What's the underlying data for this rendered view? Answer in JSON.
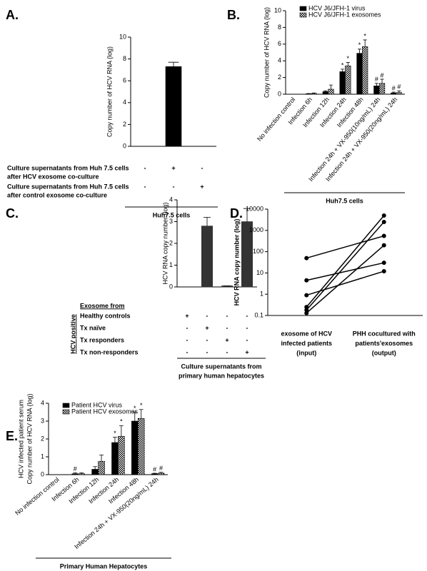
{
  "chart_data": [
    {
      "panel": "A.",
      "type": "bar",
      "y_label": "Copy number of HCV RNA (log)",
      "ylim": [
        0,
        10
      ],
      "yticks": [
        0,
        2,
        4,
        6,
        8,
        10
      ],
      "series": [
        {
          "color": "#000000",
          "values": [
            0,
            7.3,
            0
          ],
          "errors": [
            0,
            0.4,
            0
          ]
        }
      ],
      "conditions": [
        {
          "label": [
            "Culture supernatants  from Huh 7.5 cells",
            "after  HCV exosome co-culture"
          ],
          "signs": [
            "-",
            "+",
            "-"
          ]
        },
        {
          "label": [
            "Culture supernatants  from Huh 7.5 cells",
            "after control exosome co-culture"
          ],
          "signs": [
            "-",
            "-",
            "+"
          ]
        }
      ],
      "footer": [
        "Huh7.5 cells"
      ]
    },
    {
      "panel": "B.",
      "type": "bar",
      "y_label": "Copy number of HCV RNA (log)",
      "ylim": [
        0,
        10
      ],
      "yticks": [
        0,
        2,
        4,
        6,
        8,
        10
      ],
      "categories": [
        "No infection control",
        "Infection 6h",
        "Infection 12h",
        "Infection 24h",
        "Infection 48h",
        "Infection 24h + VX-950(10ng/mL) 24h",
        "Infection 24h + VX-950(20ng/mL) 24h"
      ],
      "series": [
        {
          "name": "HCV J6/JFH-1 virus",
          "color": "#000000",
          "values": [
            0,
            0.05,
            0.3,
            2.7,
            4.9,
            1.0,
            0.15
          ],
          "errors": [
            0,
            0.03,
            0.1,
            0.3,
            0.5,
            0.3,
            0.1
          ],
          "annotations": [
            null,
            null,
            null,
            "*",
            "*",
            "#",
            "#"
          ]
        },
        {
          "name": "HCV J6/JFH-1 exosomes",
          "color": "#000000",
          "pattern": "checker",
          "values": [
            0,
            0.1,
            0.6,
            3.4,
            5.7,
            1.3,
            0.2
          ],
          "errors": [
            0,
            0.05,
            0.5,
            0.4,
            0.8,
            0.5,
            0.2
          ],
          "annotations": [
            null,
            null,
            null,
            "*",
            "*",
            "#",
            "#"
          ]
        }
      ],
      "footer": [
        "Huh7.5 cells"
      ]
    },
    {
      "panel": "C.",
      "type": "bar",
      "y_label": "HCV RNA copy number (log)",
      "ylim": [
        0,
        4
      ],
      "yticks": [
        0,
        1,
        2,
        3,
        4
      ],
      "series": [
        {
          "color": "#333333",
          "values": [
            0,
            2.8,
            0.05,
            3.0
          ],
          "errors": [
            0,
            0.4,
            0,
            0.6
          ]
        }
      ],
      "conditions_title": "Exosome from",
      "group_label": "HCV positive",
      "conditions": [
        {
          "label": [
            "Healthy controls"
          ],
          "signs": [
            "+",
            "-",
            "-",
            "-"
          ]
        },
        {
          "label": [
            "Tx naïve"
          ],
          "signs": [
            "-",
            "+",
            "-",
            "-"
          ]
        },
        {
          "label": [
            "Tx responders"
          ],
          "signs": [
            "-",
            "-",
            "+",
            "-"
          ]
        },
        {
          "label": [
            "Tx non-responders"
          ],
          "signs": [
            "-",
            "-",
            "-",
            "+"
          ]
        }
      ],
      "footer": [
        "Culture supernatants from",
        "primary human hepatocytes"
      ]
    },
    {
      "panel": "D.",
      "type": "line",
      "y_label": "HCV RNA copy number (log)",
      "log_y": true,
      "ylim": [
        0.1,
        10000
      ],
      "yticks": [
        0.1,
        1,
        10,
        100,
        1000,
        10000
      ],
      "categories": [
        [
          "exosome of HCV",
          "infected patients",
          "(input)"
        ],
        [
          "PHH cocultured with",
          "patients'exosomes",
          "(output)"
        ]
      ],
      "series": [
        {
          "color": "#000000",
          "values": [
            50,
            550
          ]
        },
        {
          "color": "#000000",
          "values": [
            4.5,
            30
          ]
        },
        {
          "color": "#000000",
          "values": [
            0.9,
            12
          ]
        },
        {
          "color": "#000000",
          "values": [
            0.25,
            5000
          ]
        },
        {
          "color": "#000000",
          "values": [
            0.18,
            2500
          ]
        },
        {
          "color": "#000000",
          "values": [
            0.13,
            200
          ]
        }
      ]
    },
    {
      "panel": "E.",
      "type": "bar",
      "y_label": [
        "HCV infected patient serum",
        "Copy number of HCV RNA (log)"
      ],
      "ylim": [
        0,
        4
      ],
      "yticks": [
        0,
        1,
        2,
        3,
        4
      ],
      "categories": [
        "No infection control",
        "Infection 6h",
        "Infection 12h",
        "Infection 24h",
        "Infection 48h",
        "Infection 24h + VX-950(20ng/mL) 24h"
      ],
      "series": [
        {
          "name": "Patient HCV virus",
          "color": "#000000",
          "values": [
            0,
            0.05,
            0.3,
            1.8,
            3.0,
            0.05
          ],
          "errors": [
            0,
            0.05,
            0.15,
            0.3,
            0.5,
            0.03
          ],
          "annotations": [
            null,
            "#",
            null,
            "*",
            "*",
            "#"
          ]
        },
        {
          "name": "Patient HCV exosomes",
          "color": "#000000",
          "pattern": "checker",
          "values": [
            0,
            0.05,
            0.75,
            2.15,
            3.15,
            0.08
          ],
          "errors": [
            0,
            0.05,
            0.35,
            0.6,
            0.5,
            0.05
          ],
          "annotations": [
            null,
            null,
            null,
            "*",
            "*",
            "#"
          ]
        }
      ],
      "footer": [
        "Primary Human Hepatocytes"
      ]
    }
  ]
}
